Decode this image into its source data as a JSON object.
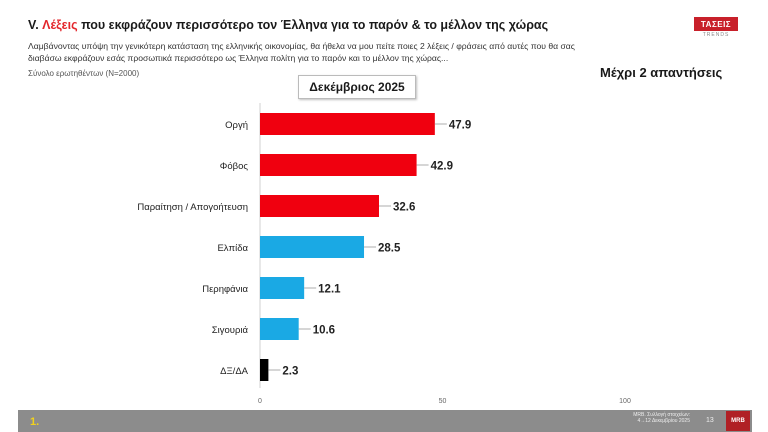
{
  "header": {
    "title_prefix": "V. ",
    "title_accent": "Λέξεις",
    "title_rest": " που εκφράζουν περισσότερο τον Έλληνα για το παρόν & το μέλλον της χώρας",
    "question": "Λαμβάνοντας υπόψη την γενικότερη κατάσταση της ελληνικής οικονομίας, θα ήθελα να μου πείτε ποιες 2 λέξεις / φράσεις από αυτές που θα σας διαβάσω εκφράζουν εσάς προσωπικά περισσότερο ως Έλληνα πολίτη για το παρόν και το μέλλον της χώρας...",
    "base": "Σύνολο ερωτηθέντων (Ν=2000)",
    "answers_note": "Μέχρι 2 απαντήσεις",
    "period": "Δεκέμβριος 2025"
  },
  "logo": {
    "name": "ΤΑΣΕΙΣ",
    "sub": "TRENDS"
  },
  "footer": {
    "slide_number": "1.",
    "source": "MRB. Συλλογή στοιχείων: 4→12 Δεκεμβρίου 2025",
    "page": "13",
    "logo": "MRB"
  },
  "colors": {
    "negative": "#f0000f",
    "positive": "#1aa9e4",
    "neutral": "#000000",
    "accent": "#e3262b"
  },
  "chart_data": {
    "type": "bar",
    "orientation": "horizontal",
    "categories": [
      "Οργή",
      "Φόβος",
      "Παραίτηση / Απογοήτευση",
      "Ελπίδα",
      "Περηφάνια",
      "Σιγουριά",
      "ΔΞ/ΔΑ"
    ],
    "values": [
      47.9,
      42.9,
      32.6,
      28.5,
      12.1,
      10.6,
      2.3
    ],
    "value_labels": [
      "47.9",
      "42.9",
      "32.6",
      "28.5",
      "12.1",
      "10.6",
      "2.3"
    ],
    "bar_colors": [
      "negative",
      "negative",
      "negative",
      "positive",
      "positive",
      "positive",
      "neutral"
    ],
    "xlim": [
      0,
      100
    ],
    "xticks": [
      "0",
      "50",
      "100"
    ],
    "grid": false
  }
}
